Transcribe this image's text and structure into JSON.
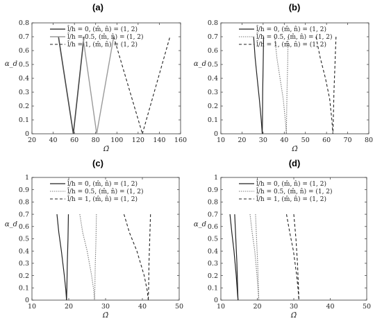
{
  "chart_data": [
    {
      "type": "line",
      "panel_label": "(a)",
      "xlabel": "Ω̄",
      "ylabel": "α_d",
      "xlim": [
        20,
        160
      ],
      "ylim": [
        0,
        0.8
      ],
      "xticks": [
        20,
        40,
        60,
        80,
        100,
        120,
        140,
        160
      ],
      "yticks": [
        0,
        0.1,
        0.2,
        0.3,
        0.4,
        0.5,
        0.6,
        0.7,
        0.8
      ],
      "legend_position": "top-left",
      "series": [
        {
          "name": "l̂/h = 0, (m̂, n̂) = (1, 2)",
          "color": "#444444",
          "dash": "",
          "width": 1.6,
          "branches": [
            {
              "x": [
                45,
                59
              ],
              "y": [
                0.7,
                0
              ]
            },
            {
              "x": [
                59,
                69
              ],
              "y": [
                0,
                0.7
              ]
            }
          ]
        },
        {
          "name": "l̂/h = 0.5, (m̂, n̂) = (1, 2)",
          "color": "#9a9a9a",
          "dash": "",
          "width": 1.4,
          "branches": [
            {
              "x": [
                68,
                81
              ],
              "y": [
                0.7,
                0
              ]
            },
            {
              "x": [
                81,
                97
              ],
              "y": [
                0,
                0.7
              ]
            }
          ]
        },
        {
          "name": "l̂/h = 1, (m̂, n̂) = (1, 2)",
          "color": "#222222",
          "dash": "4,3",
          "width": 1.1,
          "branches": [
            {
              "x": [
                97,
                124
              ],
              "y": [
                0.7,
                0
              ]
            },
            {
              "x": [
                124,
                150
              ],
              "y": [
                0,
                0.7
              ]
            }
          ]
        }
      ]
    },
    {
      "type": "line",
      "panel_label": "(b)",
      "xlabel": "Ω̄",
      "ylabel": "α_d",
      "xlim": [
        10,
        80
      ],
      "ylim": [
        0,
        0.8
      ],
      "xticks": [
        10,
        20,
        30,
        40,
        50,
        60,
        70,
        80
      ],
      "yticks": [
        0,
        0.1,
        0.2,
        0.3,
        0.4,
        0.5,
        0.6,
        0.7,
        0.8
      ],
      "legend_position": "top-left",
      "series": [
        {
          "name": "l̂/h = 0, (m̂, n̂) = (1, 2)",
          "color": "#222222",
          "dash": "",
          "width": 1.2,
          "branches": [
            {
              "x": [
                25.5,
                26.2,
                27.2,
                28.2,
                29.1,
                29.6
              ],
              "y": [
                0.7,
                0.55,
                0.4,
                0.25,
                0.1,
                0
              ]
            },
            {
              "x": [
                30.2,
                30.0,
                29.8,
                29.7,
                29.6
              ],
              "y": [
                0.7,
                0.5,
                0.3,
                0.1,
                0
              ]
            }
          ]
        },
        {
          "name": "l̂/h = 0.5, (m̂, n̂) = (1, 2)",
          "color": "#777777",
          "dash": "1.5,1.5",
          "width": 1.1,
          "branches": [
            {
              "x": [
                35.5,
                36.5,
                38.0,
                39.5,
                40.5,
                41.0
              ],
              "y": [
                0.7,
                0.55,
                0.4,
                0.25,
                0.1,
                0
              ]
            },
            {
              "x": [
                41.8,
                41.6,
                41.3,
                41.1,
                41.0
              ],
              "y": [
                0.7,
                0.5,
                0.3,
                0.1,
                0
              ]
            }
          ]
        },
        {
          "name": "l̂/h = 1, (m̂, n̂) = (1, 2)",
          "color": "#222222",
          "dash": "4,3",
          "width": 1.1,
          "branches": [
            {
              "x": [
                55.0,
                57.0,
                59.5,
                61.5,
                62.5,
                63.0
              ],
              "y": [
                0.7,
                0.55,
                0.4,
                0.25,
                0.1,
                0
              ]
            },
            {
              "x": [
                64.5,
                64.0,
                63.5,
                63.2,
                63.0
              ],
              "y": [
                0.7,
                0.5,
                0.3,
                0.1,
                0
              ]
            }
          ]
        }
      ]
    },
    {
      "type": "line",
      "panel_label": "(c)",
      "xlabel": "Ω̄",
      "ylabel": "α_d",
      "xlim": [
        10,
        50
      ],
      "ylim": [
        0,
        1
      ],
      "xticks": [
        10,
        20,
        30,
        40,
        50
      ],
      "yticks": [
        0,
        0.1,
        0.2,
        0.3,
        0.4,
        0.5,
        0.6,
        0.7,
        0.8,
        0.9,
        1
      ],
      "legend_position": "top-left",
      "series": [
        {
          "name": "l̂/h = 0, (m̂, n̂) = (1, 2)",
          "color": "#222222",
          "dash": "",
          "width": 1.2,
          "branches": [
            {
              "x": [
                16.8,
                17.3,
                18.0,
                18.8,
                19.2,
                19.4
              ],
              "y": [
                0.7,
                0.55,
                0.4,
                0.2,
                0.08,
                0
              ]
            },
            {
              "x": [
                19.9,
                19.8,
                19.6,
                19.5,
                19.4
              ],
              "y": [
                0.7,
                0.5,
                0.3,
                0.1,
                0
              ]
            }
          ]
        },
        {
          "name": "l̂/h = 0.5, (m̂, n̂) = (1, 2)",
          "color": "#777777",
          "dash": "1.5,1.5",
          "width": 1.1,
          "branches": [
            {
              "x": [
                23.0,
                23.8,
                25.0,
                26.2,
                26.8,
                27.0
              ],
              "y": [
                0.7,
                0.55,
                0.4,
                0.2,
                0.08,
                0
              ]
            },
            {
              "x": [
                27.5,
                27.4,
                27.2,
                27.1,
                27.0
              ],
              "y": [
                0.7,
                0.5,
                0.3,
                0.1,
                0
              ]
            }
          ]
        },
        {
          "name": "l̂/h = 1, (m̂, n̂) = (1, 2)",
          "color": "#222222",
          "dash": "4,3",
          "width": 1.1,
          "branches": [
            {
              "x": [
                35.0,
                36.5,
                38.5,
                40.5,
                41.3,
                41.6
              ],
              "y": [
                0.7,
                0.55,
                0.4,
                0.2,
                0.08,
                0
              ]
            },
            {
              "x": [
                42.2,
                42.0,
                41.8,
                41.7,
                41.6
              ],
              "y": [
                0.7,
                0.5,
                0.3,
                0.1,
                0
              ]
            }
          ]
        }
      ]
    },
    {
      "type": "line",
      "panel_label": "(d)",
      "xlabel": "Ω̄",
      "ylabel": "α_d",
      "xlim": [
        10,
        50
      ],
      "ylim": [
        0,
        1
      ],
      "xticks": [
        10,
        20,
        30,
        40,
        50
      ],
      "yticks": [
        0,
        0.1,
        0.2,
        0.3,
        0.4,
        0.5,
        0.6,
        0.7,
        0.8,
        0.9,
        1
      ],
      "legend_position": "top-left",
      "series": [
        {
          "name": "l̂/h = 0, (m̂, n̂) = (1, 2)",
          "color": "#222222",
          "dash": "",
          "width": 1.2,
          "branches": [
            {
              "x": [
                12.5,
                13.0,
                13.6,
                14.2,
                14.5,
                14.7
              ],
              "y": [
                0.7,
                0.55,
                0.4,
                0.2,
                0.08,
                0
              ]
            },
            {
              "x": [
                13.8,
                14.1,
                14.4,
                14.6,
                14.7
              ],
              "y": [
                0.7,
                0.5,
                0.3,
                0.1,
                0
              ]
            }
          ]
        },
        {
          "name": "l̂/h = 0.5, (m̂, n̂) = (1, 2)",
          "color": "#777777",
          "dash": "1.5,1.5",
          "width": 1.1,
          "branches": [
            {
              "x": [
                18.0,
                18.6,
                19.3,
                19.9,
                20.2,
                20.4
              ],
              "y": [
                0.7,
                0.55,
                0.4,
                0.2,
                0.08,
                0
              ]
            },
            {
              "x": [
                19.5,
                19.8,
                20.1,
                20.3,
                20.4
              ],
              "y": [
                0.7,
                0.5,
                0.3,
                0.1,
                0
              ]
            }
          ]
        },
        {
          "name": "l̂/h = 1, (m̂, n̂) = (1, 2)",
          "color": "#222222",
          "dash": "4,3",
          "width": 1.1,
          "branches": [
            {
              "x": [
                28.0,
                28.9,
                29.9,
                30.8,
                31.2,
                31.4
              ],
              "y": [
                0.7,
                0.55,
                0.4,
                0.2,
                0.08,
                0
              ]
            },
            {
              "x": [
                30.0,
                30.6,
                31.0,
                31.3,
                31.4
              ],
              "y": [
                0.7,
                0.5,
                0.3,
                0.1,
                0
              ]
            }
          ]
        }
      ]
    }
  ]
}
